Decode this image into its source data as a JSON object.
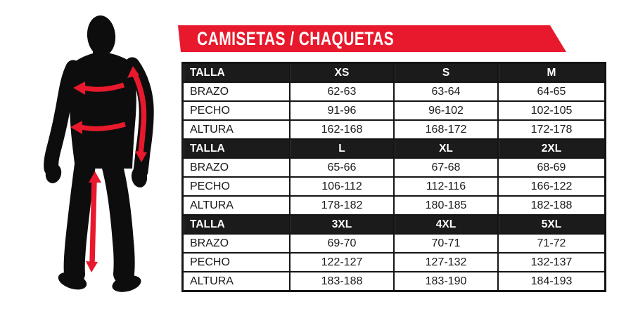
{
  "banner": {
    "title": "CAMISETAS / CHAQUETAS",
    "background": "#e8192c",
    "text_color": "#ffffff"
  },
  "figure": {
    "description": "standing male silhouette with measurement arrows",
    "silhouette_color": "#0d0d0d",
    "arrow_color": "#e8192c",
    "arrows": [
      {
        "name": "sleeve-length-arrow",
        "measure": "BRAZO"
      },
      {
        "name": "chest-arrow",
        "measure": "PECHO"
      },
      {
        "name": "waist-arrow",
        "measure": "PECHO"
      },
      {
        "name": "inseam-arrow",
        "measure": "ALTURA"
      }
    ]
  },
  "table": {
    "sections": [
      {
        "header": {
          "label": "TALLA",
          "sizes": [
            "XS",
            "S",
            "M"
          ]
        },
        "rows": [
          {
            "label": "BRAZO",
            "values": [
              "62-63",
              "63-64",
              "64-65"
            ]
          },
          {
            "label": "PECHO",
            "values": [
              "91-96",
              "96-102",
              "102-105"
            ]
          },
          {
            "label": "ALTURA",
            "values": [
              "162-168",
              "168-172",
              "172-178"
            ]
          }
        ]
      },
      {
        "header": {
          "label": "TALLA",
          "sizes": [
            "L",
            "XL",
            "2XL"
          ]
        },
        "rows": [
          {
            "label": "BRAZO",
            "values": [
              "65-66",
              "67-68",
              "68-69"
            ]
          },
          {
            "label": "PECHO",
            "values": [
              "106-112",
              "112-116",
              "166-122"
            ]
          },
          {
            "label": "ALTURA",
            "values": [
              "178-182",
              "180-185",
              "182-188"
            ]
          }
        ]
      },
      {
        "header": {
          "label": "TALLA",
          "sizes": [
            "3XL",
            "4XL",
            "5XL"
          ]
        },
        "rows": [
          {
            "label": "BRAZO",
            "values": [
              "69-70",
              "70-71",
              "71-72"
            ]
          },
          {
            "label": "PECHO",
            "values": [
              "122-127",
              "127-132",
              "132-137"
            ]
          },
          {
            "label": "ALTURA",
            "values": [
              "183-188",
              "183-190",
              "184-193"
            ]
          }
        ]
      }
    ]
  },
  "colors": {
    "accent_red": "#e8192c",
    "silhouette_black": "#0d0d0d",
    "table_grid_black": "#141414",
    "header_black": "#1b1b1b"
  }
}
